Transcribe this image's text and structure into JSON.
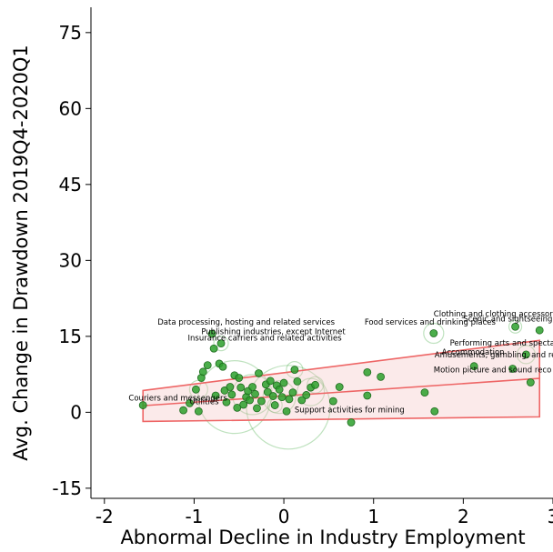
{
  "chart_data": {
    "type": "scatter",
    "xlabel": "Abnormal Decline in Industry Employment",
    "ylabel": "Avg. Change in Drawdown 2019Q4-2020Q1",
    "xlim": [
      -2.15,
      3.0
    ],
    "ylim": [
      -17,
      80
    ],
    "xticks": [
      {
        "value": -2,
        "label": "-2"
      },
      {
        "value": -1,
        "label": "-1"
      },
      {
        "value": 0,
        "label": "0"
      },
      {
        "value": 1,
        "label": "1"
      },
      {
        "value": 2,
        "label": "2"
      },
      {
        "value": 3,
        "label": "3"
      }
    ],
    "yticks": [
      {
        "value": -15,
        "label": "-15"
      },
      {
        "value": 0,
        "label": "0"
      },
      {
        "value": 15,
        "label": "15"
      },
      {
        "value": 30,
        "label": "30"
      },
      {
        "value": 45,
        "label": "45"
      },
      {
        "value": 60,
        "label": "60"
      },
      {
        "value": 75,
        "label": "75"
      }
    ],
    "grid": false,
    "legend": "none",
    "colors": {
      "point": "#2ca02c",
      "point_edge": "#1e6b1e",
      "bubble": "#2ca02c",
      "band_fill": "#f4c2c2",
      "band_line": "#ee6666"
    },
    "confidence_band": {
      "x": [
        -1.57,
        2.85
      ],
      "upper": [
        4.3,
        14.2
      ],
      "fit": [
        1.3,
        6.7
      ],
      "lower": [
        -1.8,
        -0.9
      ]
    },
    "points": [
      {
        "x": -1.57,
        "y": 1.4
      },
      {
        "x": -1.12,
        "y": 0.4
      },
      {
        "x": -1.05,
        "y": 1.8
      },
      {
        "x": -0.98,
        "y": 4.5
      },
      {
        "x": -0.95,
        "y": 0.2
      },
      {
        "x": -0.92,
        "y": 6.8
      },
      {
        "x": -0.9,
        "y": 8.0
      },
      {
        "x": -0.85,
        "y": 9.3
      },
      {
        "x": -0.8,
        "y": 15.5
      },
      {
        "x": -0.78,
        "y": 12.6
      },
      {
        "x": -0.76,
        "y": 3.3
      },
      {
        "x": -0.72,
        "y": 9.6
      },
      {
        "x": -0.7,
        "y": 13.6
      },
      {
        "x": -0.68,
        "y": 9.0
      },
      {
        "x": -0.66,
        "y": 4.3
      },
      {
        "x": -0.64,
        "y": 2.0
      },
      {
        "x": -0.6,
        "y": 5.0
      },
      {
        "x": -0.58,
        "y": 3.5
      },
      {
        "x": -0.55,
        "y": 7.3
      },
      {
        "x": -0.52,
        "y": 0.9
      },
      {
        "x": -0.5,
        "y": 6.8
      },
      {
        "x": -0.48,
        "y": 4.9
      },
      {
        "x": -0.45,
        "y": 1.5
      },
      {
        "x": -0.42,
        "y": 3.0
      },
      {
        "x": -0.4,
        "y": 4.2
      },
      {
        "x": -0.38,
        "y": 2.4
      },
      {
        "x": -0.35,
        "y": 5.0
      },
      {
        "x": -0.32,
        "y": 3.6
      },
      {
        "x": -0.3,
        "y": 0.8
      },
      {
        "x": -0.28,
        "y": 7.7
      },
      {
        "x": -0.25,
        "y": 2.2
      },
      {
        "x": -0.2,
        "y": 5.5
      },
      {
        "x": -0.18,
        "y": 4.0
      },
      {
        "x": -0.15,
        "y": 6.2
      },
      {
        "x": -0.12,
        "y": 3.2
      },
      {
        "x": -0.1,
        "y": 1.4
      },
      {
        "x": -0.08,
        "y": 5.3
      },
      {
        "x": -0.05,
        "y": 4.5
      },
      {
        "x": -0.02,
        "y": 3.0
      },
      {
        "x": 0.0,
        "y": 5.8
      },
      {
        "x": 0.03,
        "y": 0.2
      },
      {
        "x": 0.06,
        "y": 2.6
      },
      {
        "x": 0.1,
        "y": 3.9
      },
      {
        "x": 0.12,
        "y": 8.4
      },
      {
        "x": 0.15,
        "y": 6.1
      },
      {
        "x": 0.2,
        "y": 2.4
      },
      {
        "x": 0.25,
        "y": 3.4
      },
      {
        "x": 0.3,
        "y": 4.9
      },
      {
        "x": 0.35,
        "y": 5.4
      },
      {
        "x": 0.55,
        "y": 2.2
      },
      {
        "x": 0.62,
        "y": 5.0
      },
      {
        "x": 0.75,
        "y": -2.0
      },
      {
        "x": 0.93,
        "y": 7.9
      },
      {
        "x": 0.93,
        "y": 3.3
      },
      {
        "x": 1.08,
        "y": 7.0
      },
      {
        "x": 1.57,
        "y": 3.9
      },
      {
        "x": 1.67,
        "y": 15.6
      },
      {
        "x": 1.68,
        "y": 0.2
      },
      {
        "x": 2.12,
        "y": 9.1
      },
      {
        "x": 2.55,
        "y": 8.6
      },
      {
        "x": 2.58,
        "y": 16.9
      },
      {
        "x": 2.7,
        "y": 11.4
      },
      {
        "x": 2.75,
        "y": 5.9
      },
      {
        "x": 2.85,
        "y": 16.2
      }
    ],
    "bubbles": [
      {
        "x": -0.55,
        "y": 3.0,
        "r": 40
      },
      {
        "x": 0.05,
        "y": 1.0,
        "r": 46
      },
      {
        "x": -0.35,
        "y": 3.5,
        "r": 22
      },
      {
        "x": -0.05,
        "y": 3.0,
        "r": 18
      },
      {
        "x": 0.3,
        "y": 4.0,
        "r": 15
      },
      {
        "x": 1.67,
        "y": 15.6,
        "r": 11
      },
      {
        "x": 2.7,
        "y": 11.4,
        "r": 10
      },
      {
        "x": 0.12,
        "y": 8.4,
        "r": 9
      },
      {
        "x": -0.95,
        "y": 4.5,
        "r": 10
      },
      {
        "x": -0.7,
        "y": 13.6,
        "r": 8
      },
      {
        "x": 2.58,
        "y": 16.9,
        "r": 7
      },
      {
        "x": 0.35,
        "y": 5.4,
        "r": 9
      },
      {
        "x": -0.1,
        "y": 1.4,
        "r": 8
      }
    ],
    "annotations": [
      {
        "text": "Data processing, hosting and related services",
        "x": -0.42,
        "y": 17.3,
        "anchor": "middle"
      },
      {
        "text": "Publishing industries, except Internet",
        "x": -0.92,
        "y": 15.4,
        "anchor": "start"
      },
      {
        "text": "Insurance carriers and related activities",
        "x": -1.07,
        "y": 14.2,
        "anchor": "start"
      },
      {
        "text": "Food services and drinking places",
        "x": 0.9,
        "y": 17.3,
        "anchor": "start"
      },
      {
        "text": "Clothing and clothing accessories",
        "x": 1.67,
        "y": 18.9,
        "anchor": "start"
      },
      {
        "text": "Scenic and sightseeing",
        "x": 2.0,
        "y": 17.9,
        "anchor": "start"
      },
      {
        "text": "Performing arts and spectat",
        "x": 1.85,
        "y": 13.2,
        "anchor": "start"
      },
      {
        "text": "Accommodation",
        "x": 1.76,
        "y": 11.4,
        "anchor": "start"
      },
      {
        "text": "Amusements, gambling, and re",
        "x": 1.68,
        "y": 10.8,
        "anchor": "start"
      },
      {
        "text": "Motion picture and sound reco",
        "x": 1.67,
        "y": 7.9,
        "anchor": "start"
      },
      {
        "text": "Couriers and messengers",
        "x": -1.73,
        "y": 2.3,
        "anchor": "start"
      },
      {
        "text": "Utilities",
        "x": -1.05,
        "y": 1.6,
        "anchor": "start"
      },
      {
        "text": "Support activities for mining",
        "x": 0.12,
        "y": 0.0,
        "anchor": "start"
      }
    ]
  }
}
